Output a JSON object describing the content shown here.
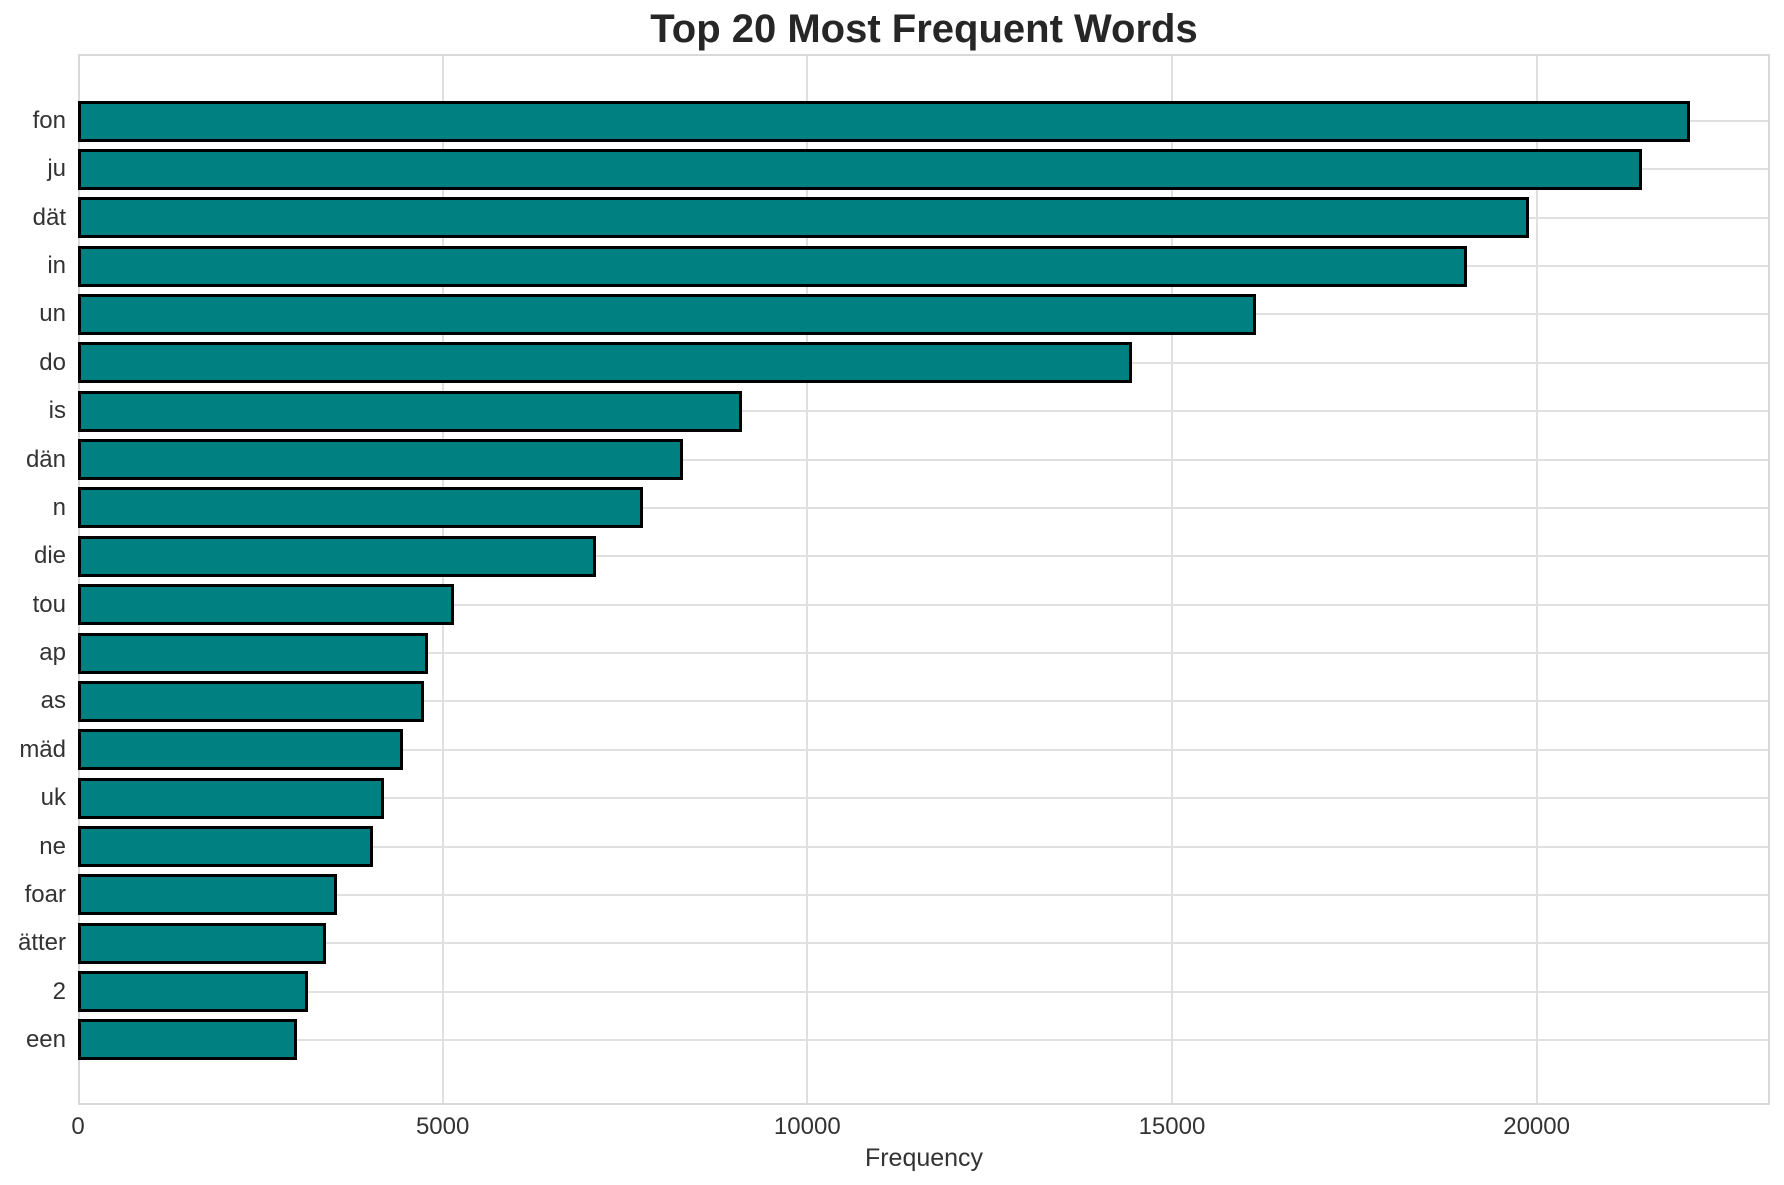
{
  "chart_data": {
    "type": "bar",
    "orientation": "horizontal",
    "title": "Top 20 Most Frequent Words",
    "xlabel": "Frequency",
    "ylabel": "",
    "categories": [
      "fon",
      "ju",
      "dät",
      "in",
      "un",
      "do",
      "is",
      "dän",
      "n",
      "die",
      "tou",
      "ap",
      "as",
      "mäd",
      "uk",
      "ne",
      "foar",
      "ätter",
      "2",
      "een"
    ],
    "values": [
      22100,
      21450,
      19900,
      19050,
      16150,
      14450,
      9100,
      8300,
      7750,
      7100,
      5150,
      4800,
      4750,
      4450,
      4200,
      4050,
      3550,
      3400,
      3150,
      3000
    ],
    "xlim": [
      0,
      23200
    ],
    "xticks": [
      0,
      5000,
      10000,
      15000,
      20000
    ],
    "xtick_labels": [
      "0",
      "5000",
      "10000",
      "15000",
      "20000"
    ],
    "grid": true,
    "legend": null,
    "colors": {
      "bar_fill": "#008080",
      "bar_edge": "#000000",
      "gridline": "#e0e0e0",
      "spine": "#d9d9d9",
      "title_text": "#262626",
      "tick_text": "#333333",
      "background": "#ffffff"
    }
  }
}
